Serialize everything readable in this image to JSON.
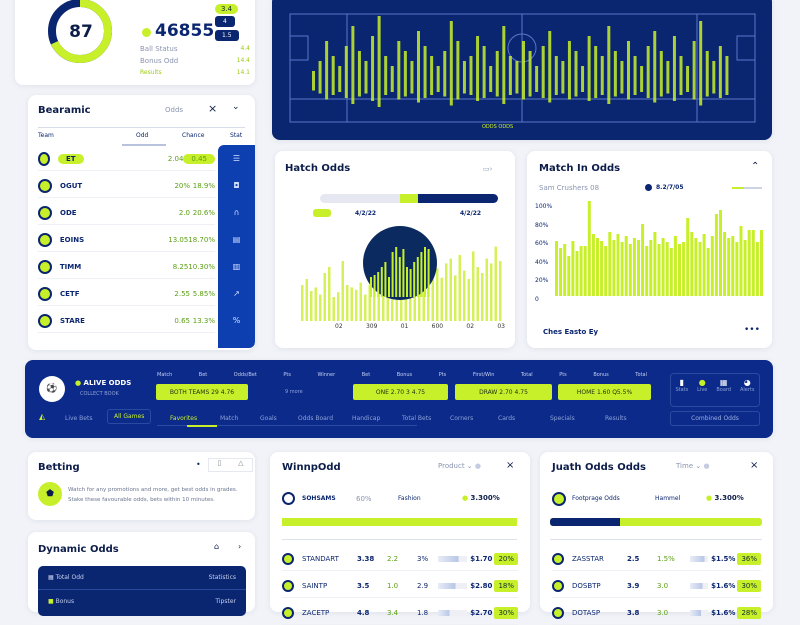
{
  "top_card": {
    "donut_value": "87",
    "donut_fraction": 0.68,
    "big_number": "46855",
    "badge1": "3.4",
    "badge2": "4",
    "badge3": "1.5",
    "stat_rows": [
      {
        "label": "Ball Status",
        "value": "4.4"
      },
      {
        "label": "Bonus Odd",
        "value": "14.4"
      },
      {
        "label": "Results",
        "value": "14.1"
      }
    ]
  },
  "field": {
    "caption": "ODDS ODDS",
    "bars": [
      3,
      5,
      9,
      6,
      4,
      8,
      12,
      7,
      5,
      10,
      14,
      6,
      4,
      9,
      7,
      5,
      11,
      8,
      6,
      4,
      7,
      13,
      9,
      5,
      6,
      10,
      8,
      4,
      7,
      12,
      6,
      5,
      9,
      7,
      4,
      8,
      11,
      6,
      5,
      9,
      7,
      4,
      10,
      8,
      6,
      12,
      7,
      5,
      9,
      6,
      4,
      8,
      11,
      7,
      5,
      10,
      6,
      4,
      9,
      13,
      7,
      5,
      8,
      6
    ]
  },
  "table": {
    "title": "Bearamic",
    "filter": "Odds",
    "columns": [
      "Team",
      "Odd",
      "Chance",
      "Stat"
    ],
    "rows": [
      {
        "team": "ET",
        "odd": "2.04",
        "chance": "0.45"
      },
      {
        "team": "OGUT",
        "odd": "20%",
        "chance": "18.9%"
      },
      {
        "team": "ODE",
        "odd": "2.0",
        "chance": "20.6%"
      },
      {
        "team": "EOINS",
        "odd": "13.05",
        "chance": "18.70%"
      },
      {
        "team": "TIMM",
        "odd": "8.25",
        "chance": "10.30%"
      },
      {
        "team": "CETF",
        "odd": "2.55",
        "chance": "5.85%"
      },
      {
        "team": "STARE",
        "odd": "0.65",
        "chance": "13.3%"
      }
    ]
  },
  "match_odds": {
    "title": "Hatch Odds",
    "legend_left": "4/2/22",
    "legend_right": "4/2/22",
    "progress": 0.55,
    "xticks": [
      "02",
      "309",
      "01",
      "600",
      "02",
      "03"
    ],
    "bars": [
      30,
      35,
      25,
      28,
      22,
      40,
      45,
      20,
      24,
      50,
      30,
      28,
      26,
      32,
      22,
      30,
      40,
      35,
      30,
      34,
      26,
      42,
      38,
      30,
      44,
      55,
      40,
      50,
      34,
      60,
      44,
      36,
      48,
      52,
      38,
      55,
      42,
      35,
      58,
      45,
      40,
      52,
      48,
      62,
      50
    ]
  },
  "match_in_odds": {
    "title": "Match In Odds",
    "legend_label": "Sam Crushers 08",
    "legend_series": "8.2/7/05",
    "yticks": [
      "100%",
      "80%",
      "60%",
      "40%",
      "20%",
      "0"
    ],
    "footer": "Ches Easto Ey",
    "bars": [
      55,
      48,
      52,
      40,
      55,
      45,
      50,
      50,
      95,
      62,
      58,
      55,
      50,
      64,
      56,
      62,
      54,
      60,
      52,
      58,
      56,
      72,
      50,
      56,
      64,
      52,
      58,
      54,
      48,
      60,
      52,
      54,
      78,
      64,
      58,
      54,
      62,
      48,
      60,
      82,
      86,
      64,
      58,
      60,
      54,
      70,
      56,
      66,
      66,
      54,
      66
    ]
  },
  "banner": {
    "title": "ALIVE ODDS",
    "subtitle": "COLLECT BOOK",
    "headers": [
      "Match",
      "Bet",
      "Odds/Bet",
      "Pts",
      "Winner",
      "Bet",
      "Bonus",
      "Pts",
      "First/Win",
      "Total",
      "Pts",
      "Bonus",
      "Total"
    ],
    "boxes": [
      "BOTH TEAMS 29 4.76",
      "ONE 2.70 3 4.75",
      "DRAW 2.70 4.75",
      "HOME 1.60 Q5.5%"
    ],
    "mid": "9 more",
    "icons": [
      "Stats",
      "Live",
      "Board",
      "Alerts"
    ],
    "tabs": [
      "Live Bets",
      "All Games",
      "Favorites",
      "Match",
      "Goals",
      "Odds Board",
      "Handicap",
      "Total Bets",
      "Corners",
      "Cards",
      "Specials",
      "Results"
    ],
    "action": "Combined Odds"
  },
  "betting": {
    "title": "Betting",
    "text": "Watch for any promotions and more, get best odds in grades. Stake these favourable odds, bets within 10 minutes."
  },
  "dynamic": {
    "title": "Dynamic Odds",
    "rows": [
      {
        "label": "Total Odd",
        "value": "Statistics"
      },
      {
        "label": "Bonus",
        "value": "Tipster"
      }
    ]
  },
  "win_card": {
    "title": "WinnpOdd",
    "filter": "Product",
    "team": "SOHSAMS",
    "pct": "60%",
    "label": "Fashion",
    "value": "3.300%",
    "progress": 1.0,
    "rows": [
      {
        "name": "STANDART",
        "a": "3.38",
        "b": "2.2",
        "c": "3%",
        "d": "$1.70",
        "e": "20%",
        "fill": 0.7
      },
      {
        "name": "SAINTP",
        "a": "3.5",
        "b": "1.0",
        "c": "2.9",
        "d": "$2.80",
        "e": "18%",
        "fill": 0.6
      },
      {
        "name": "ZACETP",
        "a": "4.8",
        "b": "3.4",
        "c": "1.8",
        "d": "$2.70",
        "e": "30%",
        "fill": 0.4
      }
    ]
  },
  "juath_card": {
    "title": "Juath Odds Odds",
    "filter": "Time",
    "team": "Footprage Odds",
    "label": "Hammel",
    "value": "3.300%",
    "progress": 0.33,
    "rows": [
      {
        "name": "ZASSTAR",
        "a": "2.5",
        "b": "1.5%",
        "d": "$1.5%",
        "e": "36%",
        "fill": 0.8
      },
      {
        "name": "DOSBTP",
        "a": "3.9",
        "b": "3.0",
        "d": "$1.6%",
        "e": "30%",
        "fill": 0.7
      },
      {
        "name": "DOTASP",
        "a": "3.8",
        "b": "3.0",
        "d": "$1.6%",
        "e": "28%",
        "fill": 0.6
      }
    ]
  },
  "colors": {
    "navy": "#0b2670",
    "lime": "#c8f02a",
    "bg": "#f1f3f8"
  }
}
